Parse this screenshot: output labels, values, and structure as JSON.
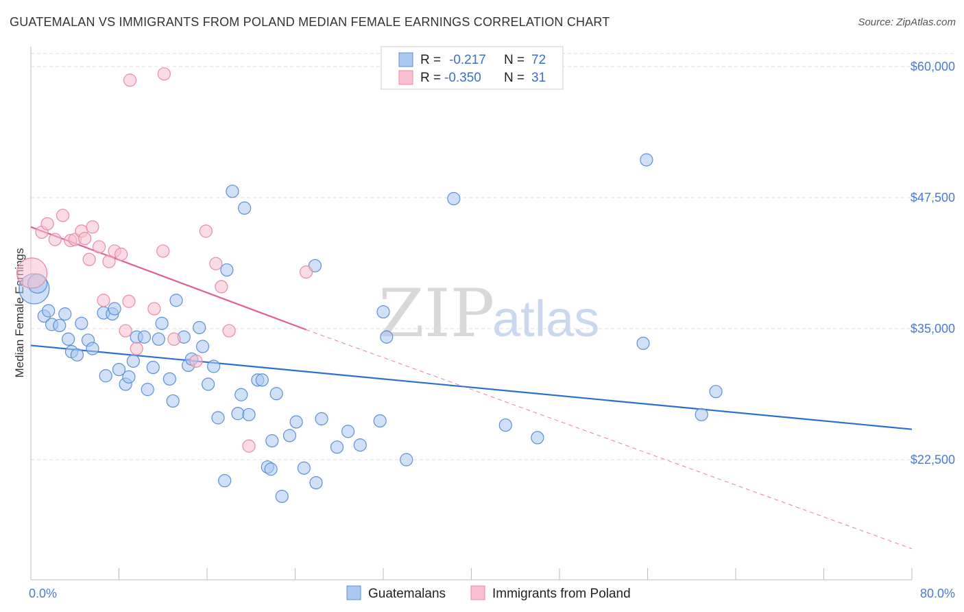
{
  "title": "GUATEMALAN VS IMMIGRANTS FROM POLAND MEDIAN FEMALE EARNINGS CORRELATION CHART",
  "source": "Source: ZipAtlas.com",
  "watermark": {
    "zip": "ZIP",
    "atlas": "atlas"
  },
  "colors": {
    "blue_fill": "#aac8f0",
    "blue_stroke": "#5b8fd6",
    "blue_line": "#2a6fd0",
    "pink_fill": "#f7bfd0",
    "pink_stroke": "#e88aa8",
    "pink_line": "#e0608a",
    "axis_label": "#4a7bd1",
    "grid": "#dddddd"
  },
  "legend": {
    "rows": [
      {
        "r_label": "R =",
        "r_value": "-0.217",
        "n_label": "N =",
        "n_value": "72",
        "series": "blue"
      },
      {
        "r_label": "R =",
        "r_value": "-0.350",
        "n_label": "N =",
        "n_value": "31",
        "series": "pink"
      }
    ]
  },
  "bottom_legend": [
    {
      "label": "Guatemalans",
      "series": "blue"
    },
    {
      "label": "Immigrants from Poland",
      "series": "pink"
    }
  ],
  "chart_data": {
    "type": "scatter",
    "title": "GUATEMALAN VS IMMIGRANTS FROM POLAND MEDIAN FEMALE EARNINGS CORRELATION CHART",
    "xlabel": "",
    "ylabel": "Median Female Earnings",
    "xlim": [
      0,
      80
    ],
    "ylim": [
      12000,
      62000
    ],
    "x_tick_labels": [
      {
        "value": 0,
        "label": "0.0%"
      },
      {
        "value": 80,
        "label": "80.0%"
      }
    ],
    "y_tick_labels": [
      {
        "value": 22500,
        "label": "$22,500"
      },
      {
        "value": 35000,
        "label": "$35,000"
      },
      {
        "value": 47500,
        "label": "$47,500"
      },
      {
        "value": 60000,
        "label": "$60,000"
      }
    ],
    "series": [
      {
        "name": "Guatemalans",
        "color": "blue",
        "points": [
          [
            0.3,
            38800,
            22
          ],
          [
            0.6,
            39300,
            14
          ],
          [
            1.2,
            36200,
            9
          ],
          [
            1.6,
            36700,
            9
          ],
          [
            1.9,
            35400,
            9
          ],
          [
            2.6,
            35300,
            9
          ],
          [
            3.1,
            36400,
            9
          ],
          [
            3.4,
            34000,
            9
          ],
          [
            3.7,
            32800,
            9
          ],
          [
            4.2,
            32500,
            9
          ],
          [
            4.6,
            35500,
            9
          ],
          [
            5.2,
            33900,
            9
          ],
          [
            5.6,
            33100,
            9
          ],
          [
            6.6,
            36500,
            9
          ],
          [
            6.8,
            30500,
            9
          ],
          [
            7.4,
            36400,
            9
          ],
          [
            7.6,
            36900,
            9
          ],
          [
            8.0,
            31100,
            9
          ],
          [
            8.6,
            29700,
            9
          ],
          [
            8.9,
            30400,
            9
          ],
          [
            9.3,
            31900,
            9
          ],
          [
            9.6,
            34200,
            9
          ],
          [
            10.3,
            34200,
            9
          ],
          [
            10.6,
            29200,
            9
          ],
          [
            11.1,
            31300,
            9
          ],
          [
            11.6,
            34000,
            9
          ],
          [
            11.9,
            35500,
            9
          ],
          [
            12.6,
            30200,
            9
          ],
          [
            12.9,
            28100,
            9
          ],
          [
            13.2,
            37700,
            9
          ],
          [
            13.9,
            34200,
            9
          ],
          [
            14.3,
            31500,
            9
          ],
          [
            14.6,
            32100,
            9
          ],
          [
            15.3,
            35100,
            9
          ],
          [
            15.6,
            33300,
            9
          ],
          [
            16.1,
            29700,
            9
          ],
          [
            16.6,
            31400,
            9
          ],
          [
            17.0,
            26500,
            9
          ],
          [
            17.6,
            20500,
            9
          ],
          [
            17.8,
            40600,
            9
          ],
          [
            18.8,
            26900,
            9
          ],
          [
            19.1,
            28700,
            9
          ],
          [
            19.8,
            26800,
            9
          ],
          [
            20.6,
            30100,
            9
          ],
          [
            21.0,
            30100,
            9
          ],
          [
            21.5,
            21800,
            9
          ],
          [
            21.8,
            21600,
            9
          ],
          [
            22.3,
            28800,
            9
          ],
          [
            22.8,
            19000,
            9
          ],
          [
            23.5,
            24800,
            9
          ],
          [
            24.1,
            26100,
            9
          ],
          [
            24.8,
            21700,
            9
          ],
          [
            25.9,
            20300,
            9
          ],
          [
            26.4,
            26400,
            9
          ],
          [
            27.8,
            23700,
            9
          ],
          [
            28.8,
            25200,
            9
          ],
          [
            29.9,
            23900,
            9
          ],
          [
            31.7,
            26200,
            9
          ],
          [
            32.3,
            34200,
            9
          ],
          [
            34.1,
            22500,
            9
          ],
          [
            21.9,
            24300,
            9
          ],
          [
            18.3,
            48100,
            9
          ],
          [
            19.4,
            46500,
            9
          ],
          [
            25.8,
            41000,
            9
          ],
          [
            32.0,
            36600,
            9
          ],
          [
            38.4,
            47400,
            9
          ],
          [
            43.1,
            25800,
            9
          ],
          [
            46.0,
            24600,
            9
          ],
          [
            55.9,
            51100,
            9
          ],
          [
            55.6,
            33600,
            9
          ],
          [
            60.9,
            26800,
            9
          ],
          [
            62.2,
            29000,
            9
          ]
        ]
      },
      {
        "name": "Immigrants from Poland",
        "color": "pink",
        "points": [
          [
            0.1,
            40300,
            22
          ],
          [
            1.0,
            44200,
            9
          ],
          [
            1.5,
            45000,
            9
          ],
          [
            2.2,
            43500,
            9
          ],
          [
            2.9,
            45800,
            9
          ],
          [
            3.6,
            43400,
            9
          ],
          [
            4.0,
            43500,
            9
          ],
          [
            4.6,
            44300,
            9
          ],
          [
            4.9,
            43600,
            9
          ],
          [
            5.3,
            41600,
            9
          ],
          [
            5.6,
            44700,
            9
          ],
          [
            6.2,
            42800,
            9
          ],
          [
            6.6,
            37700,
            9
          ],
          [
            7.1,
            41400,
            9
          ],
          [
            7.6,
            42400,
            9
          ],
          [
            8.2,
            42100,
            9
          ],
          [
            8.6,
            34800,
            9
          ],
          [
            8.9,
            37600,
            9
          ],
          [
            9.6,
            33100,
            9
          ],
          [
            11.2,
            36900,
            9
          ],
          [
            12.0,
            42400,
            9
          ],
          [
            13.0,
            34000,
            9
          ],
          [
            15.0,
            31900,
            9
          ],
          [
            15.9,
            44300,
            9
          ],
          [
            16.8,
            41200,
            9
          ],
          [
            17.3,
            39000,
            9
          ],
          [
            18.0,
            34800,
            9
          ],
          [
            19.8,
            23800,
            9
          ],
          [
            25.0,
            40400,
            9
          ],
          [
            9.0,
            58700,
            9
          ],
          [
            12.1,
            59300,
            9
          ]
        ]
      }
    ],
    "trendlines": [
      {
        "series": "Guatemalans",
        "x": [
          0,
          80
        ],
        "y": [
          33400,
          25400
        ],
        "style": "solid"
      },
      {
        "series": "Immigrants from Poland",
        "x": [
          0,
          25
        ],
        "y": [
          44700,
          34900
        ],
        "style": "solid"
      },
      {
        "series": "Immigrants from Poland",
        "x": [
          25,
          80
        ],
        "y": [
          34900,
          14000
        ],
        "style": "dashed"
      }
    ]
  }
}
